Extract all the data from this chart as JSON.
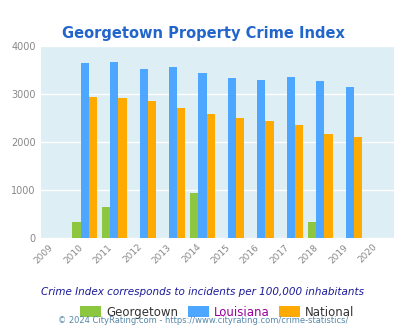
{
  "title": "Georgetown Property Crime Index",
  "all_years": [
    2009,
    2010,
    2011,
    2012,
    2013,
    2014,
    2015,
    2016,
    2017,
    2018,
    2019,
    2020
  ],
  "bar_years": [
    2010,
    2011,
    2012,
    2013,
    2014,
    2015,
    2016,
    2017,
    2018,
    2019
  ],
  "georgetown": [
    330,
    630,
    0,
    0,
    940,
    0,
    0,
    0,
    330,
    0
  ],
  "louisiana": [
    3640,
    3660,
    3530,
    3560,
    3440,
    3330,
    3290,
    3360,
    3270,
    3140
  ],
  "national": [
    2930,
    2910,
    2860,
    2710,
    2580,
    2490,
    2440,
    2360,
    2170,
    2100
  ],
  "color_georgetown": "#8dc63f",
  "color_louisiana": "#4da6ff",
  "color_national": "#ffaa00",
  "ylim": [
    0,
    4000
  ],
  "yticks": [
    0,
    1000,
    2000,
    3000,
    4000
  ],
  "bg_color": "#ddeef4",
  "title_color": "#2266cc",
  "bar_width": 0.28,
  "legend_labels": [
    "Georgetown",
    "Louisiana",
    "National"
  ],
  "legend_label_colors": [
    "#333333",
    "#990099",
    "#333333"
  ],
  "subtitle": "Crime Index corresponds to incidents per 100,000 inhabitants",
  "subtitle_color": "#1a1a99",
  "footer": "© 2024 CityRating.com - https://www.cityrating.com/crime-statistics/",
  "footer_color": "#5588aa"
}
